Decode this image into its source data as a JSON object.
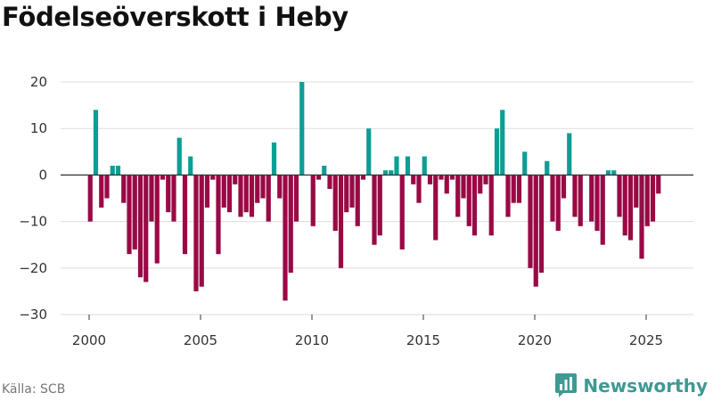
{
  "title": "Födelseöverskott i Heby",
  "source": "Källa: SCB",
  "brand": {
    "name": "Newsworthy",
    "icon": "bar-chart-speech-bubble-icon"
  },
  "colors": {
    "positive": "#0b9e96",
    "negative": "#990a45",
    "grid": "#dddddd",
    "zero": "#333333"
  },
  "chart_data": {
    "type": "bar",
    "xlabel": "",
    "ylabel": "",
    "ylim": [
      -30,
      20
    ],
    "yticks": [
      20,
      10,
      0,
      -10,
      -20,
      -30
    ],
    "ytick_labels": [
      "20",
      "10",
      "0",
      "−10",
      "−20",
      "−30"
    ],
    "xticks": [
      "2000",
      "2005",
      "2010",
      "2015",
      "2020",
      "2025"
    ],
    "grid": true,
    "legend": "none",
    "frequency": "quarterly",
    "start": "2000 Q1",
    "values": [
      -10,
      14,
      -7,
      -5,
      2,
      2,
      -6,
      -17,
      -16,
      -22,
      -23,
      -10,
      -19,
      -1,
      -8,
      -10,
      8,
      -17,
      4,
      -25,
      -24,
      -7,
      -1,
      -17,
      -7,
      -8,
      -2,
      -9,
      -8,
      -9,
      -6,
      -5,
      -10,
      7,
      -5,
      -27,
      -21,
      -10,
      20,
      0,
      -11,
      -1,
      2,
      -3,
      -12,
      -20,
      -8,
      -7,
      -11,
      -1,
      10,
      -15,
      -13,
      1,
      1,
      4,
      -16,
      4,
      -2,
      -6,
      4,
      -2,
      -14,
      -1,
      -4,
      -1,
      -9,
      -5,
      -11,
      -13,
      -4,
      -2,
      -13,
      10,
      14,
      -9,
      -6,
      -6,
      5,
      -20,
      -24,
      -21,
      3,
      -10,
      -12,
      -5,
      9,
      -9,
      -11,
      0,
      -10,
      -12,
      -15,
      1,
      1,
      -9,
      -13,
      -14,
      -7,
      -18,
      -11,
      -10,
      -4
    ]
  }
}
